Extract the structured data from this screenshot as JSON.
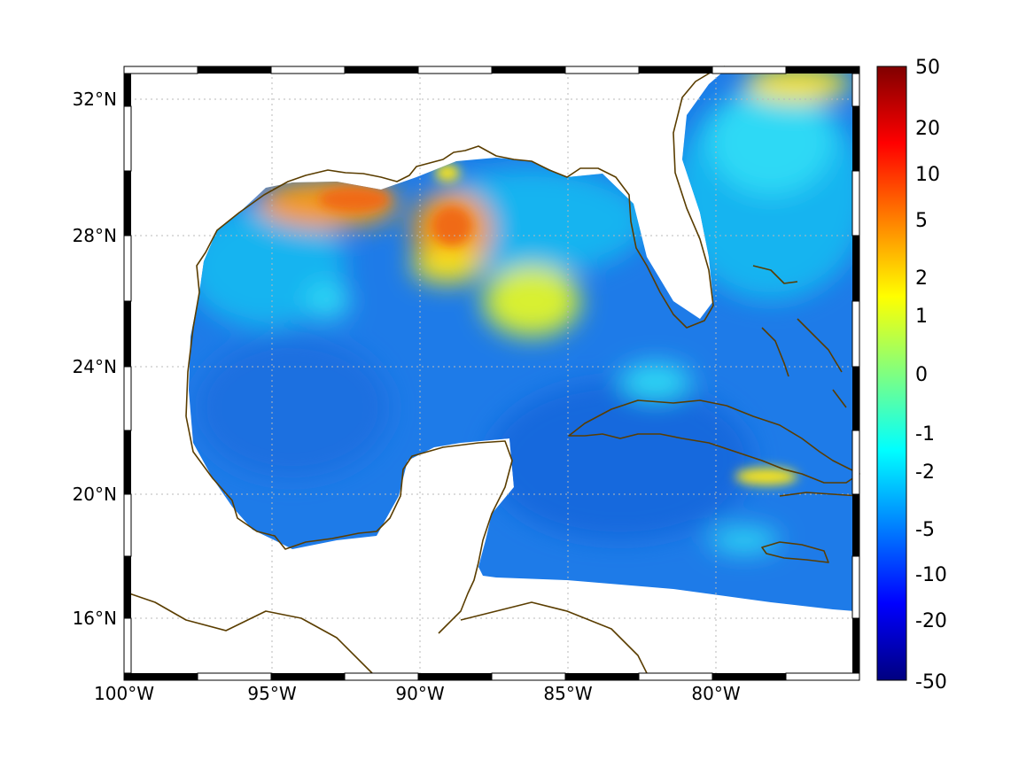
{
  "map": {
    "region": "Gulf of Mexico and Caribbean",
    "lat_ticks": [
      "32°N",
      "28°N",
      "24°N",
      "20°N",
      "16°N"
    ],
    "lon_ticks": [
      "100°W",
      "95°W",
      "90°W",
      "85°W",
      "80°W"
    ],
    "lat_tick_values": [
      32,
      28,
      24,
      20,
      16
    ],
    "lon_tick_values": [
      -100,
      -95,
      -90,
      -85,
      -80
    ],
    "extent": {
      "lon_min": -100,
      "lon_max": -75.1,
      "lat_min": 14.3,
      "lat_max": 33.0
    },
    "coastline_color": "#5a3d00",
    "grid": true
  },
  "colorbar": {
    "colormap": "jet",
    "labels": [
      "50",
      "20",
      "10",
      "5",
      "2",
      "1",
      "0",
      "-1",
      "-2",
      "-5",
      "-10",
      "-20",
      "-50"
    ],
    "colors": [
      "#800000",
      "#ff0000",
      "#ff8000",
      "#ffff00",
      "#80ff80",
      "#00ffff",
      "#0080ff",
      "#0000ff",
      "#000080"
    ]
  },
  "field_colors": {
    "ocean_base": "#1e7be8",
    "light_blue": "#12b4f0",
    "cyan": "#2fd9f5",
    "yellow": "#f6e21a",
    "orange": "#f59a16",
    "red_orange": "#f06a12"
  }
}
